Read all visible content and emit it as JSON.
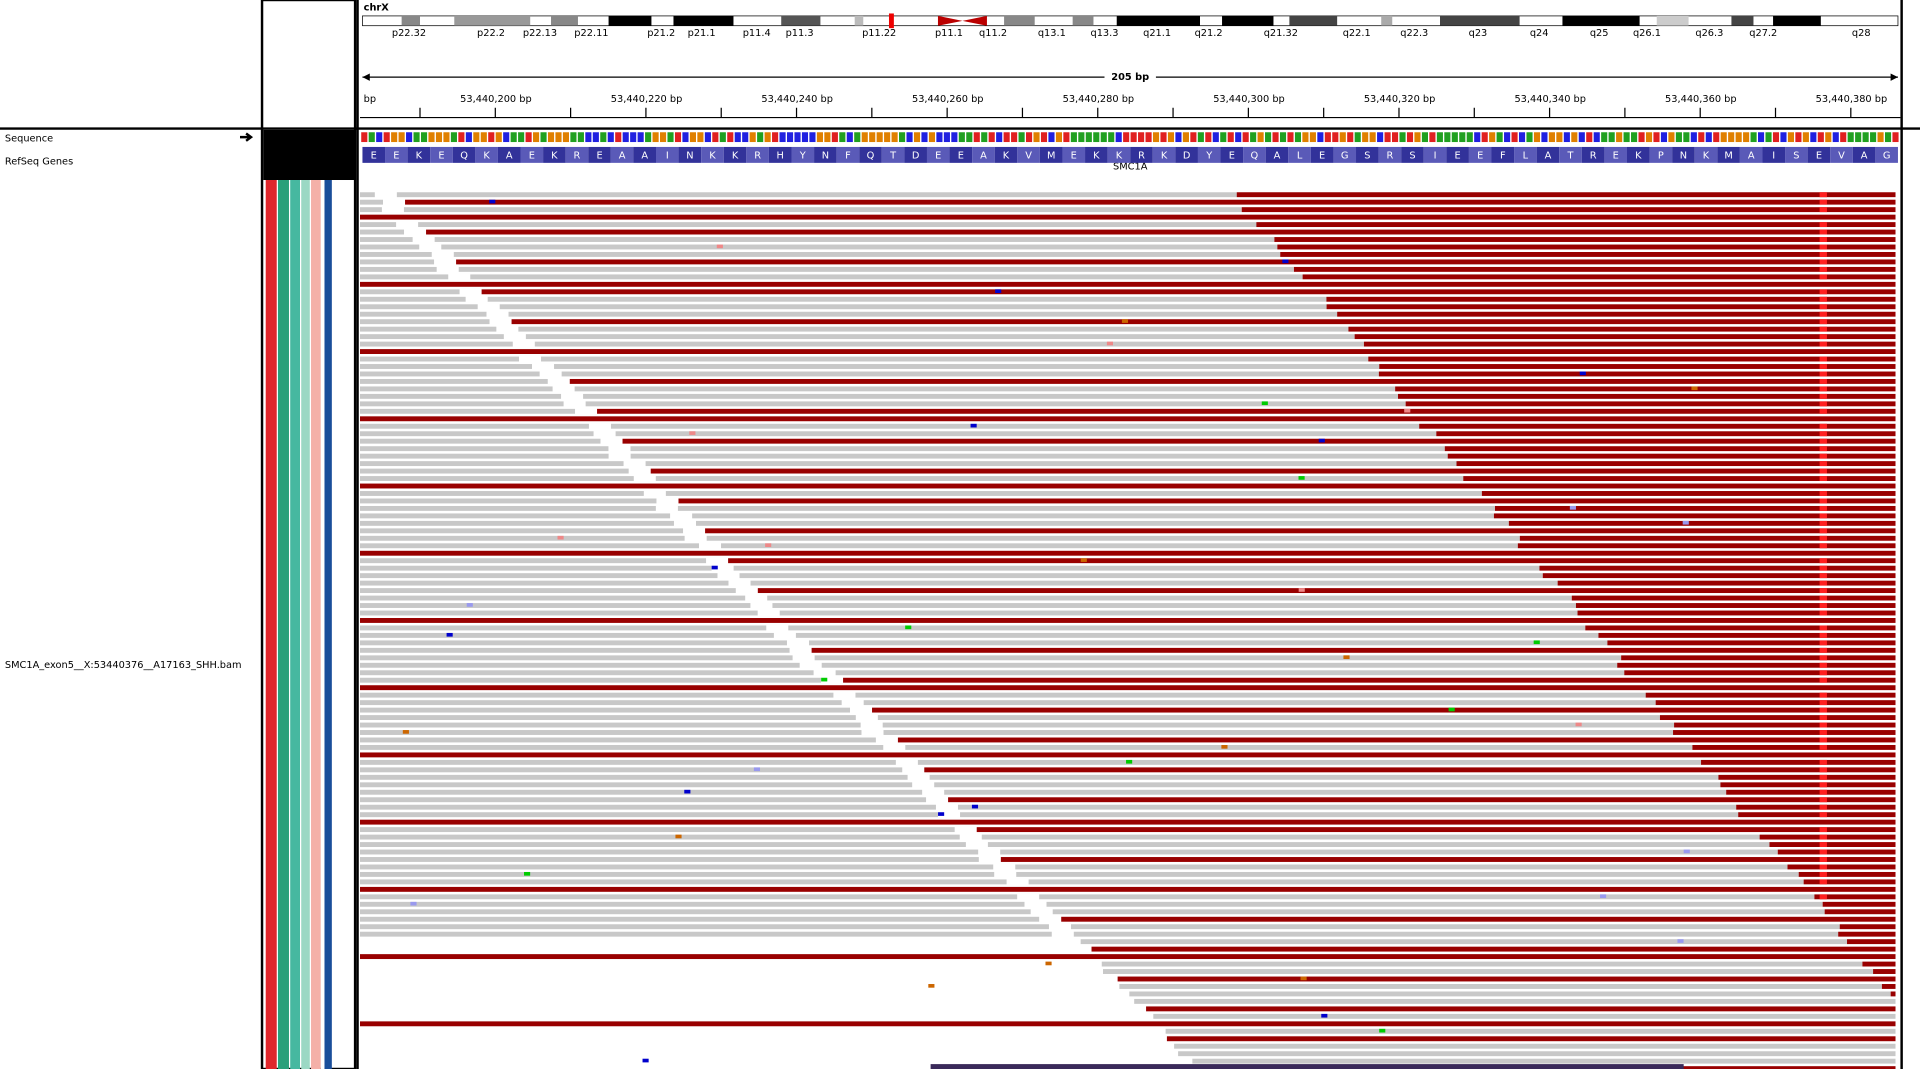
{
  "header": {
    "chromosome": "chrX",
    "cytobands": [
      "p22.32",
      "p22.2",
      "p22.13",
      "p22.11",
      "p21.2",
      "p21.1",
      "p11.4",
      "p11.3",
      "p11.22",
      "p11.1",
      "q11.2",
      "q13.1",
      "q13.3",
      "q21.1",
      "q21.2",
      "q21.32",
      "q22.1",
      "q22.3",
      "q23",
      "q24",
      "q25",
      "q26.1",
      "q26.3",
      "q27.2",
      "q28"
    ],
    "span": "205 bp",
    "ruler_start": "bp",
    "positions": [
      "53,440,200 bp",
      "53,440,220 bp",
      "53,440,240 bp",
      "53,440,260 bp",
      "53,440,280 bp",
      "53,440,300 bp",
      "53,440,320 bp",
      "53,440,340 bp",
      "53,440,360 bp",
      "53,440,380 bp"
    ]
  },
  "tracks": {
    "sequence": "Sequence",
    "genes": "RefSeq Genes",
    "gene": "SMC1A",
    "bam": "SMC1A_exon5__X:53440376__A17163_SHH.bam",
    "amino_acids": [
      "E",
      "E",
      "K",
      "E",
      "Q",
      "K",
      "A",
      "E",
      "K",
      "R",
      "E",
      "A",
      "A",
      "I",
      "N",
      "K",
      "K",
      "R",
      "H",
      "Y",
      "N",
      "F",
      "Q",
      "T",
      "D",
      "E",
      "E",
      "A",
      "K",
      "V",
      "M",
      "E",
      "K",
      "K",
      "R",
      "K",
      "D",
      "Y",
      "E",
      "Q",
      "A",
      "L",
      "E",
      "G",
      "S",
      "R",
      "S",
      "I",
      "E",
      "E",
      "F",
      "L",
      "A",
      "T",
      "R",
      "E",
      "K",
      "P",
      "N",
      "K",
      "M",
      "A",
      "I",
      "S",
      "E",
      "V",
      "A",
      "G"
    ]
  }
}
